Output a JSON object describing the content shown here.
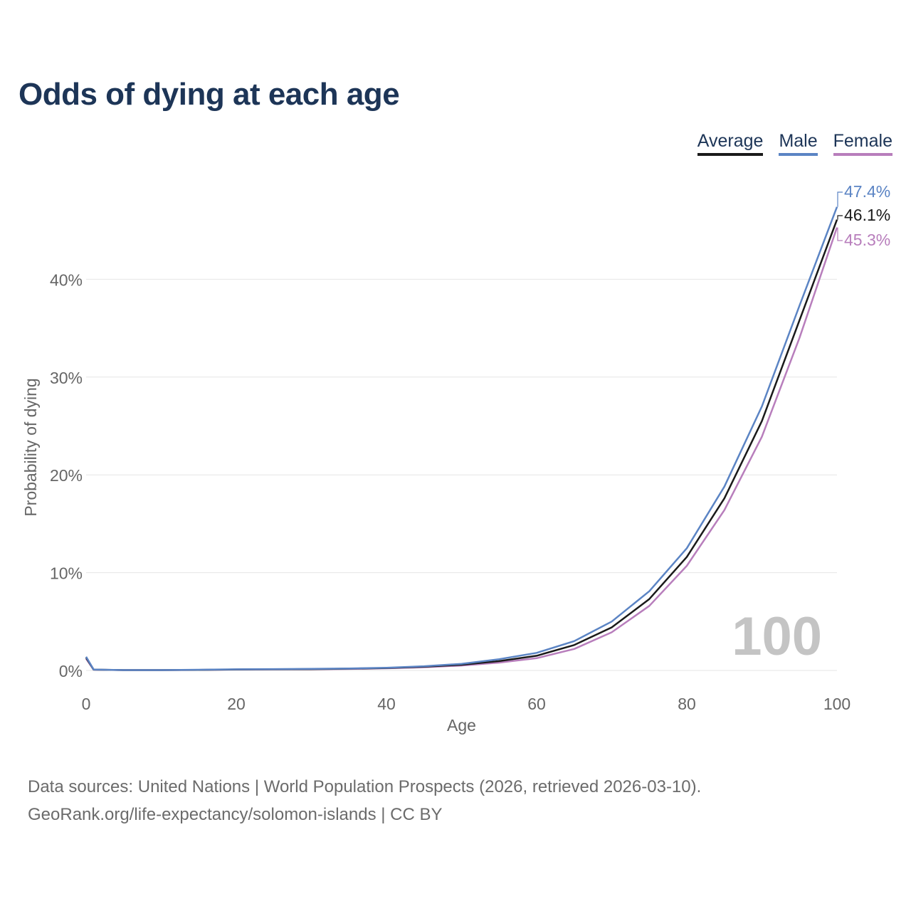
{
  "title": "Odds of dying at each age",
  "legend": [
    {
      "label": "Average",
      "color": "#1a1a1a"
    },
    {
      "label": "Male",
      "color": "#5b84c4"
    },
    {
      "label": "Female",
      "color": "#b87ebc"
    }
  ],
  "chart_data": {
    "type": "line",
    "xlabel": "Age",
    "ylabel": "Probability of dying",
    "xlim": [
      0,
      100
    ],
    "ylim": [
      0,
      50
    ],
    "xticks": [
      0,
      20,
      40,
      60,
      80,
      100
    ],
    "yticks": [
      0,
      10,
      20,
      30,
      40
    ],
    "grid": true,
    "highlight_label": "100",
    "x": [
      0,
      1,
      5,
      10,
      15,
      20,
      25,
      30,
      35,
      40,
      45,
      50,
      55,
      60,
      65,
      70,
      75,
      80,
      85,
      90,
      95,
      100
    ],
    "series": [
      {
        "name": "Average",
        "color": "#1a1a1a",
        "end_label": "46.1%",
        "values": [
          1.3,
          0.08,
          0.04,
          0.04,
          0.06,
          0.1,
          0.12,
          0.14,
          0.18,
          0.25,
          0.38,
          0.58,
          0.95,
          1.5,
          2.6,
          4.4,
          7.3,
          11.6,
          17.6,
          25.5,
          35.8,
          46.1
        ]
      },
      {
        "name": "Male",
        "color": "#5b84c4",
        "end_label": "47.4%",
        "values": [
          1.4,
          0.09,
          0.04,
          0.04,
          0.07,
          0.12,
          0.14,
          0.16,
          0.2,
          0.28,
          0.43,
          0.68,
          1.15,
          1.8,
          3.0,
          5.0,
          8.1,
          12.5,
          18.8,
          27.0,
          37.3,
          47.4
        ]
      },
      {
        "name": "Female",
        "color": "#b87ebc",
        "end_label": "45.3%",
        "values": [
          1.2,
          0.07,
          0.04,
          0.04,
          0.05,
          0.09,
          0.11,
          0.12,
          0.15,
          0.22,
          0.33,
          0.5,
          0.8,
          1.25,
          2.2,
          3.9,
          6.6,
          10.7,
          16.4,
          23.9,
          34.0,
          45.3
        ]
      }
    ]
  },
  "footer": {
    "sources": "Data sources: United Nations | World Population Prospects (2026, retrieved 2026-03-10).",
    "link": "GeoRank.org/life-expectancy/solomon-islands | CC BY"
  }
}
